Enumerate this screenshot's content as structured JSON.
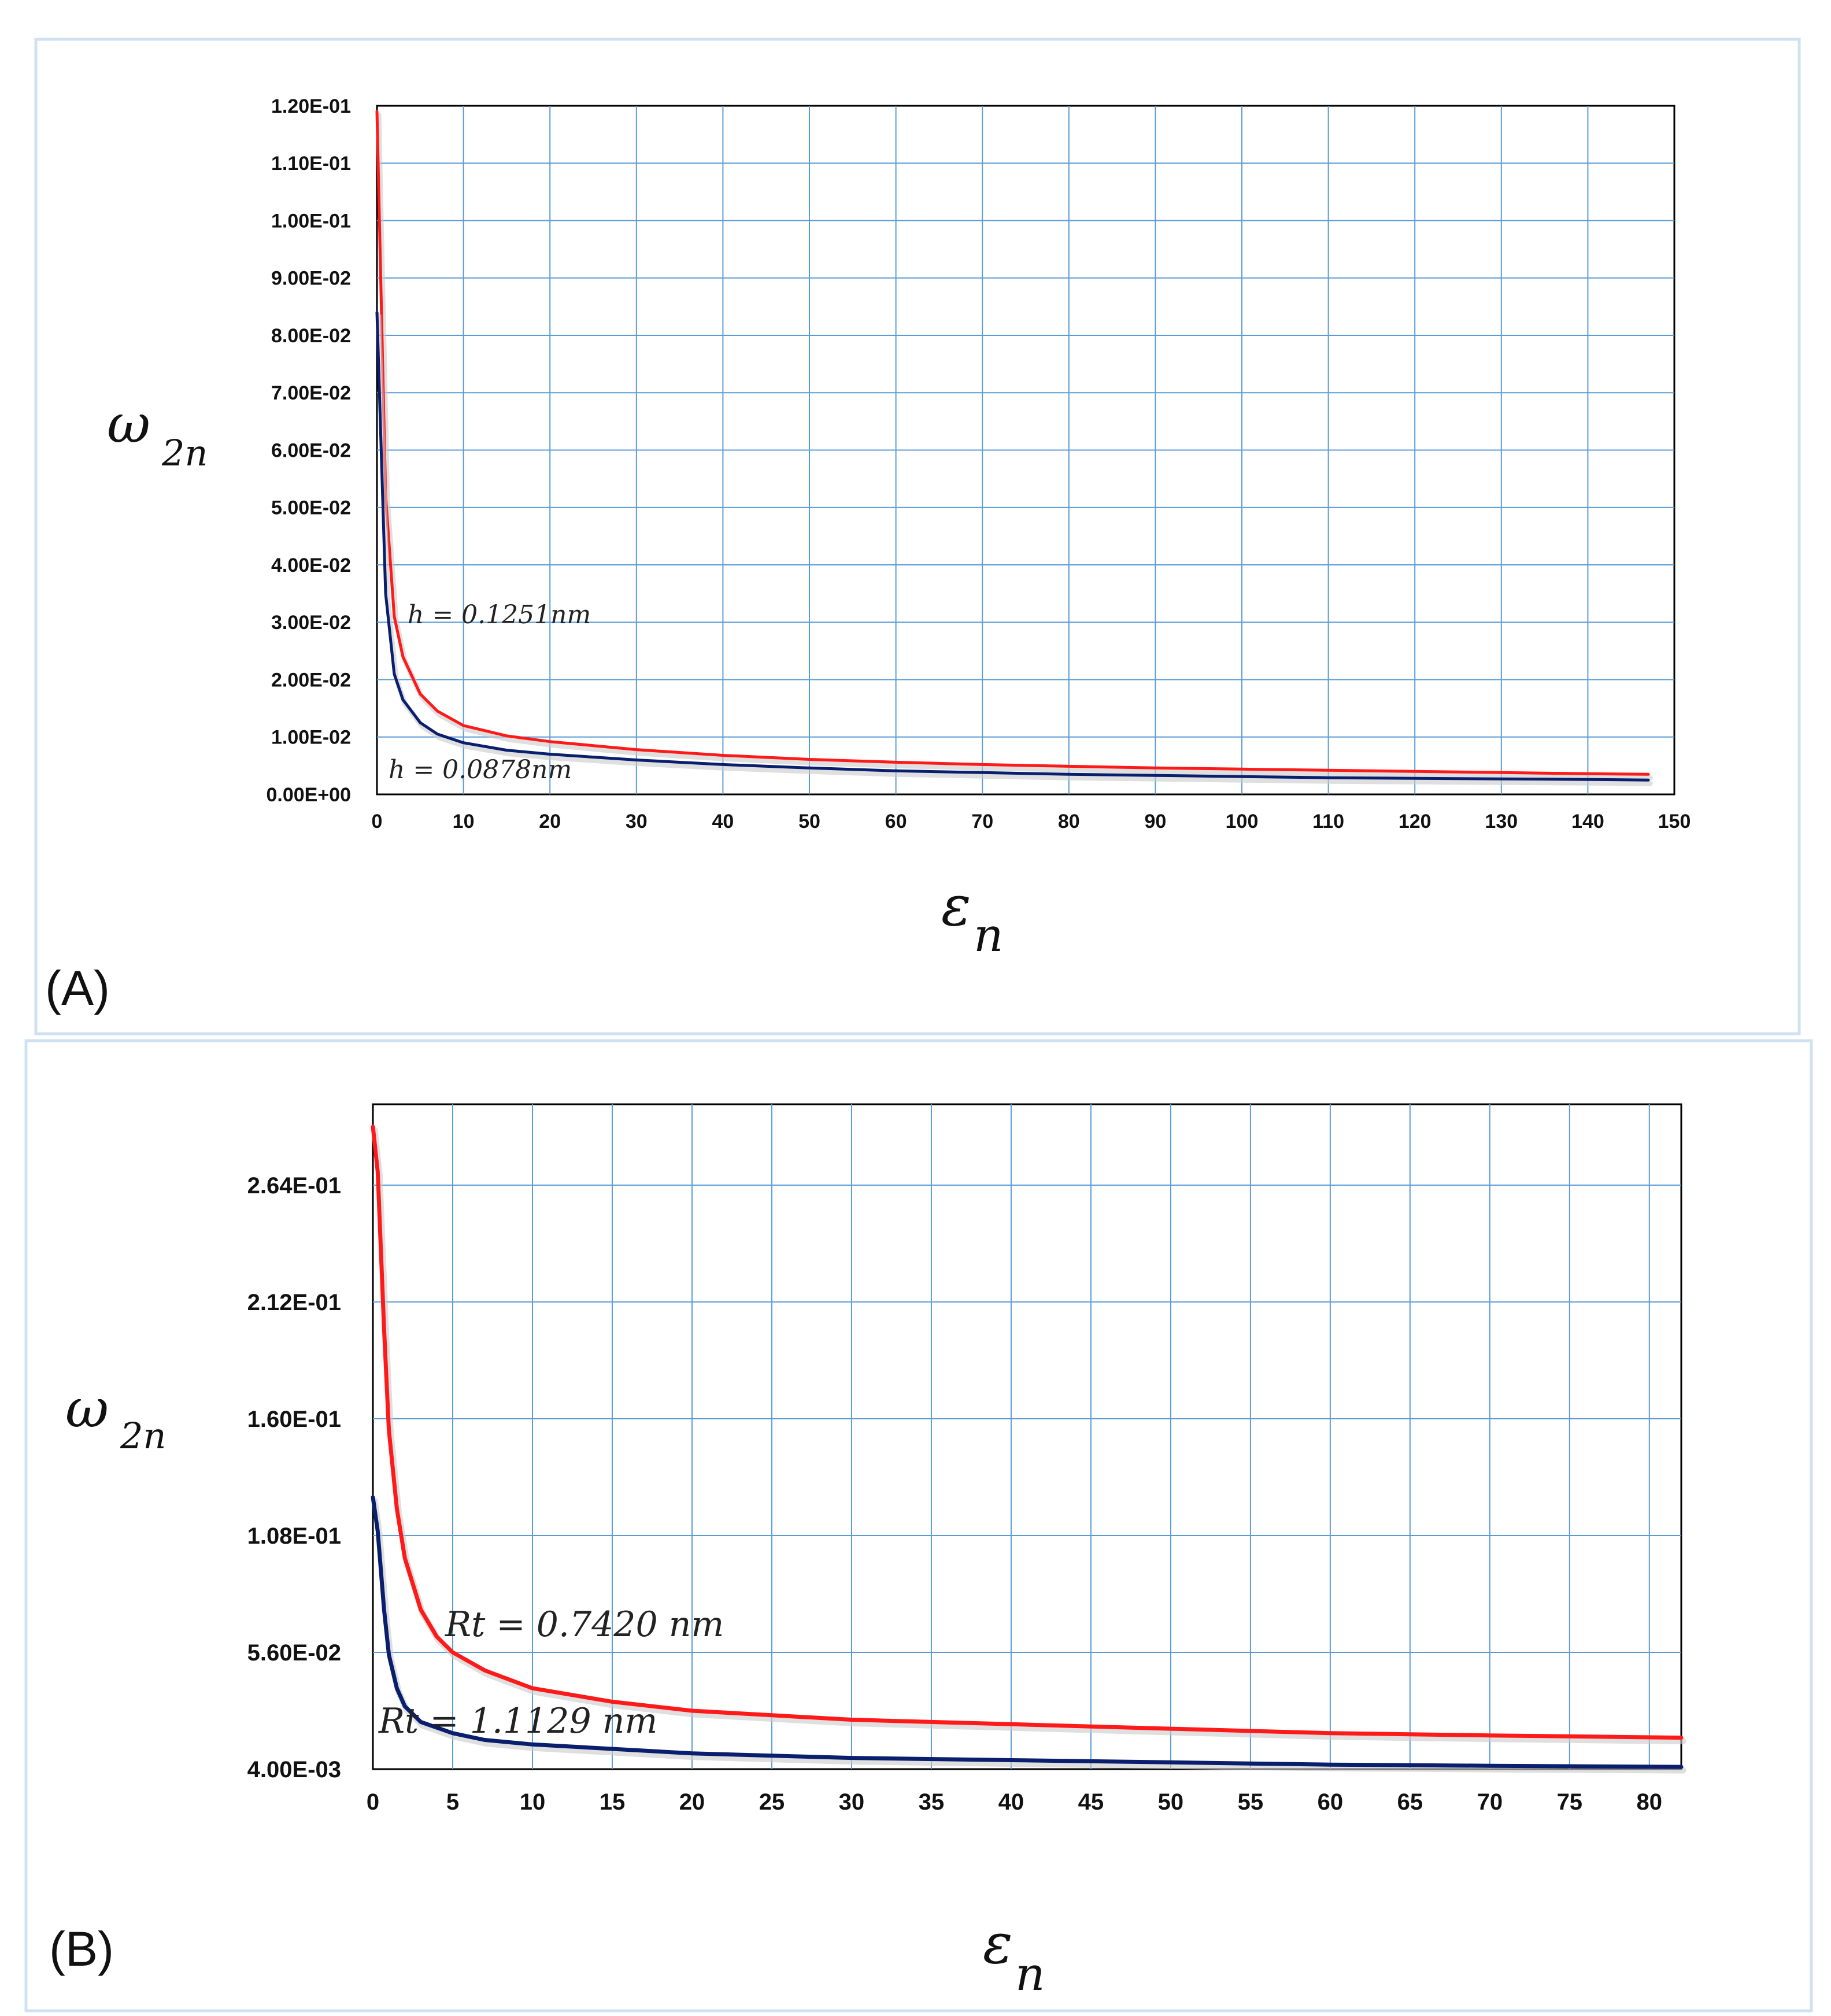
{
  "chart_data": [
    {
      "id": "A",
      "type": "line",
      "panel_label": "(A)",
      "ylabel": {
        "symbol": "ω",
        "subscript": "2n"
      },
      "xlabel": {
        "symbol": "ε",
        "subscript": "n"
      },
      "xlim": [
        0,
        150
      ],
      "ylim": [
        0,
        0.12
      ],
      "xticks": [
        "0",
        "10",
        "20",
        "30",
        "40",
        "50",
        "60",
        "70",
        "80",
        "90",
        "100",
        "110",
        "120",
        "130",
        "140",
        "150"
      ],
      "yticks": [
        "0.00E+00",
        "1.00E-02",
        "2.00E-02",
        "3.00E-02",
        "4.00E-02",
        "5.00E-02",
        "6.00E-02",
        "7.00E-02",
        "8.00E-02",
        "9.00E-02",
        "1.00E-01",
        "1.10E-01",
        "1.20E-01"
      ],
      "grid": true,
      "series": [
        {
          "name": "h = 0.1251nm",
          "color": "#ff1a1a",
          "x": [
            0,
            1,
            2,
            3,
            5,
            7,
            10,
            15,
            20,
            30,
            40,
            50,
            60,
            70,
            80,
            90,
            100,
            110,
            120,
            130,
            140,
            147
          ],
          "y": [
            0.119,
            0.052,
            0.031,
            0.024,
            0.0175,
            0.0145,
            0.012,
            0.0102,
            0.0092,
            0.0078,
            0.0068,
            0.0061,
            0.0056,
            0.0052,
            0.0049,
            0.0046,
            0.0044,
            0.0042,
            0.004,
            0.0038,
            0.0036,
            0.0035
          ]
        },
        {
          "name": "h = 0.0878nm",
          "color": "#0a1e6e",
          "x": [
            0,
            1,
            2,
            3,
            5,
            7,
            10,
            15,
            20,
            30,
            40,
            50,
            60,
            70,
            80,
            90,
            100,
            110,
            120,
            130,
            140,
            147
          ],
          "y": [
            0.084,
            0.035,
            0.021,
            0.0165,
            0.0125,
            0.0105,
            0.009,
            0.0077,
            0.007,
            0.006,
            0.0052,
            0.0046,
            0.0041,
            0.0038,
            0.0035,
            0.0033,
            0.0031,
            0.0029,
            0.0028,
            0.0027,
            0.0026,
            0.0025
          ]
        }
      ],
      "annotations": [
        "h = 0.1251nm",
        "h = 0.0878nm"
      ]
    },
    {
      "id": "B",
      "type": "line",
      "panel_label": "(B)",
      "ylabel": {
        "symbol": "ω",
        "subscript": "2n"
      },
      "xlabel": {
        "symbol": "ε",
        "subscript": "n"
      },
      "xlim": [
        0,
        82
      ],
      "ylim": [
        0.004,
        0.3
      ],
      "xticks": [
        "0",
        "5",
        "10",
        "15",
        "20",
        "25",
        "30",
        "35",
        "40",
        "45",
        "50",
        "55",
        "60",
        "65",
        "70",
        "75",
        "80"
      ],
      "yticks": [
        "4.00E-03",
        "5.60E-02",
        "1.08E-01",
        "1.60E-01",
        "2.12E-01",
        "2.64E-01"
      ],
      "ytick_values": [
        0.004,
        0.056,
        0.108,
        0.16,
        0.212,
        0.264
      ],
      "grid": true,
      "series": [
        {
          "name": "Rt = 0.7420 nm",
          "color": "#ff1a1a",
          "x": [
            0,
            0.3,
            0.7,
            1,
            1.5,
            2,
            3,
            4,
            5,
            7,
            10,
            15,
            20,
            25,
            30,
            40,
            50,
            60,
            70,
            82
          ],
          "y": [
            0.29,
            0.27,
            0.2,
            0.155,
            0.12,
            0.098,
            0.075,
            0.063,
            0.056,
            0.048,
            0.04,
            0.034,
            0.03,
            0.028,
            0.026,
            0.024,
            0.022,
            0.02,
            0.019,
            0.018
          ]
        },
        {
          "name": "Rt = 1.1129 nm",
          "color": "#0a1e6e",
          "x": [
            0,
            0.3,
            0.7,
            1,
            1.5,
            2,
            3,
            5,
            7,
            10,
            15,
            20,
            30,
            40,
            50,
            60,
            70,
            82
          ],
          "y": [
            0.125,
            0.11,
            0.075,
            0.055,
            0.04,
            0.032,
            0.025,
            0.02,
            0.017,
            0.015,
            0.013,
            0.011,
            0.009,
            0.008,
            0.007,
            0.006,
            0.0055,
            0.005
          ]
        }
      ],
      "annotations": [
        "Rt = 0.7420 nm",
        "Rt = 1.1129 nm"
      ]
    }
  ]
}
